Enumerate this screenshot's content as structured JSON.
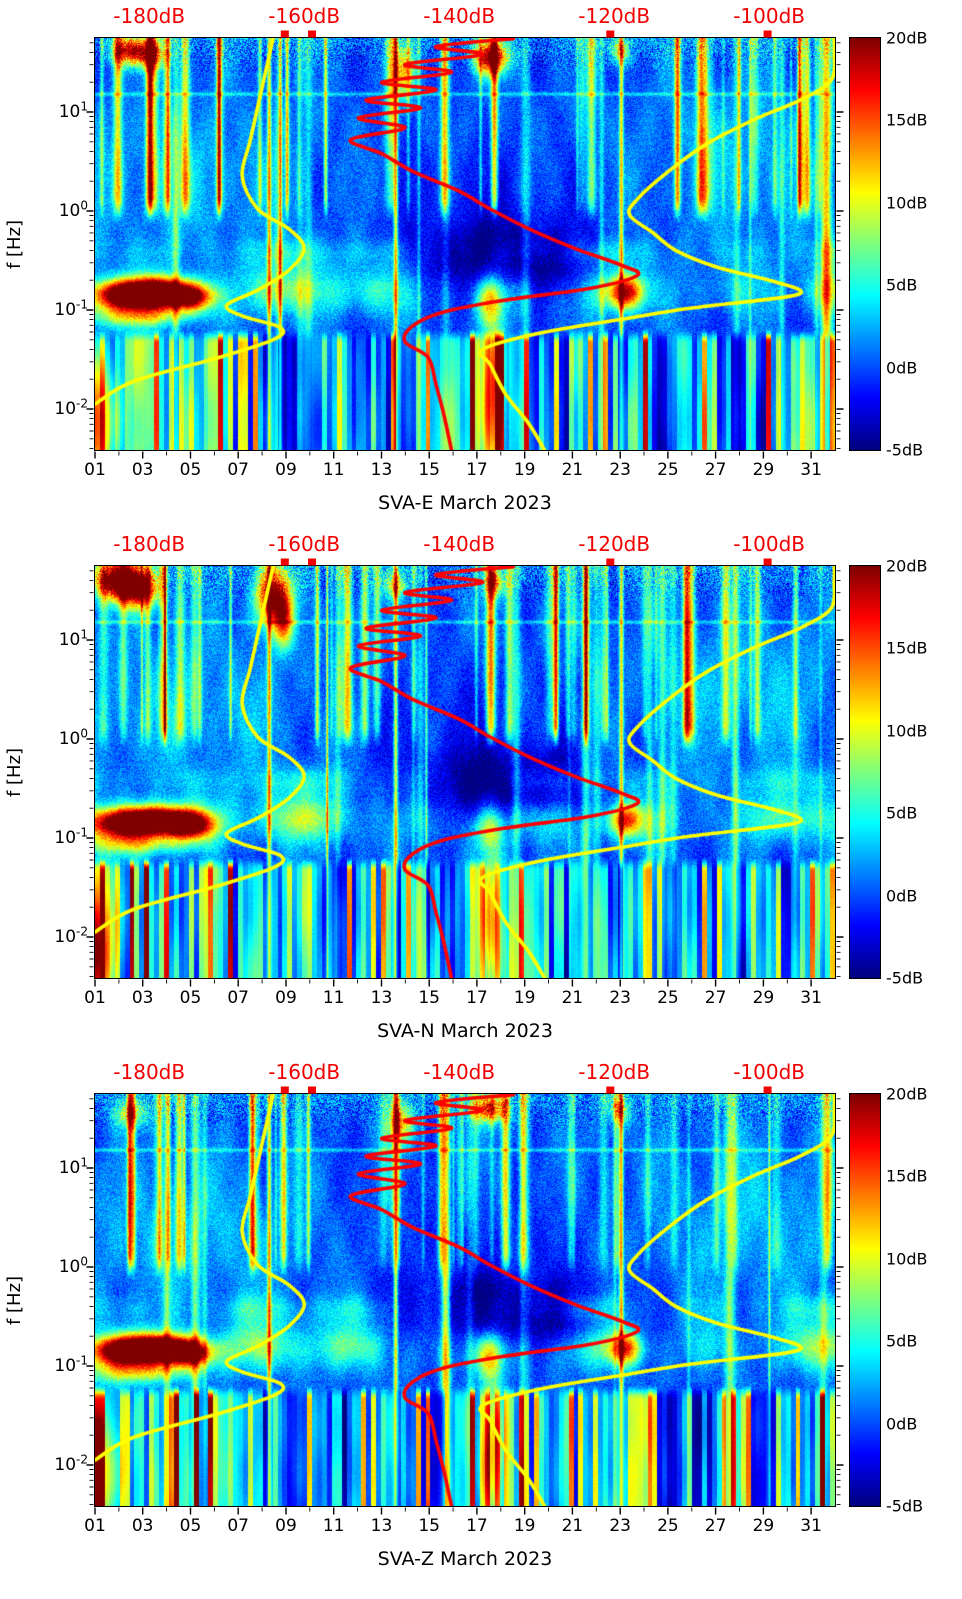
{
  "chart_data": {
    "type": "heatmap",
    "panels": [
      {
        "title": "SVA-E March 2023",
        "seed": 11,
        "features": [
          {
            "day": 2.4,
            "logf": 1.62,
            "amp": 15,
            "wd": 0.5,
            "hl": 0.1
          },
          {
            "day": 3.3,
            "logf": 1.58,
            "amp": 12,
            "wd": 0.5,
            "hl": 0.1
          },
          {
            "day": 13.9,
            "logf": 1.4,
            "amp": 11,
            "wd": 0.35,
            "hl": 0.18
          },
          {
            "day": 17.6,
            "logf": 1.55,
            "amp": 19,
            "wd": 0.5,
            "hl": 0.12
          },
          {
            "day": 23.0,
            "logf": 1.62,
            "amp": 10,
            "wd": 0.3,
            "hl": 0.1
          }
        ]
      },
      {
        "title": "SVA-N March 2023",
        "seed": 22,
        "features": [
          {
            "day": 1.9,
            "logf": 1.6,
            "amp": 21,
            "wd": 0.7,
            "hl": 0.13
          },
          {
            "day": 2.9,
            "logf": 1.52,
            "amp": 18,
            "wd": 0.6,
            "hl": 0.15
          },
          {
            "day": 8.4,
            "logf": 1.45,
            "amp": 20,
            "wd": 0.5,
            "hl": 0.22
          },
          {
            "day": 8.9,
            "logf": 1.2,
            "amp": 12,
            "wd": 0.3,
            "hl": 0.2
          },
          {
            "day": 13.6,
            "logf": 1.55,
            "amp": 10,
            "wd": 0.3,
            "hl": 0.1
          },
          {
            "day": 17.8,
            "logf": 1.58,
            "amp": 11,
            "wd": 0.3,
            "hl": 0.1
          }
        ]
      },
      {
        "title": "SVA-Z March 2023",
        "seed": 33,
        "features": [
          {
            "day": 2.5,
            "logf": 1.55,
            "amp": 9,
            "wd": 0.5,
            "hl": 0.1
          },
          {
            "day": 13.8,
            "logf": 1.45,
            "amp": 11,
            "wd": 0.4,
            "hl": 0.15
          },
          {
            "day": 17.5,
            "logf": 1.6,
            "amp": 16,
            "wd": 0.5,
            "hl": 0.1
          },
          {
            "day": 23.0,
            "logf": 1.58,
            "amp": 8,
            "wd": 0.3,
            "hl": 0.1
          }
        ]
      }
    ],
    "x_axis": {
      "major_tick_labels": [
        "01",
        "03",
        "05",
        "07",
        "09",
        "11",
        "13",
        "15",
        "17",
        "19",
        "21",
        "23",
        "25",
        "27",
        "29",
        "31"
      ],
      "major_days": [
        1,
        3,
        5,
        7,
        9,
        11,
        13,
        15,
        17,
        19,
        21,
        23,
        25,
        27,
        29,
        31
      ],
      "minor_days": [
        2,
        4,
        6,
        8,
        10,
        12,
        14,
        16,
        18,
        20,
        22,
        24,
        26,
        28,
        30
      ],
      "domain_days": [
        1,
        32
      ]
    },
    "y_axis": {
      "label": "f [Hz]",
      "scale": "log10",
      "major_tick_exponents": [
        1,
        0,
        -1,
        -2
      ],
      "domain_log10": [
        -2.414,
        1.747
      ]
    },
    "top_axis": {
      "color": "#f20000",
      "labels": [
        {
          "text": "-180dB",
          "value": -180
        },
        {
          "text": "-160dB",
          "value": -160
        },
        {
          "text": "-140dB",
          "value": -140
        },
        {
          "text": "-120dB",
          "value": -120
        },
        {
          "text": "-100dB",
          "value": -100
        }
      ],
      "domain_db": [
        -187,
        -91.5
      ],
      "marker_values_db": [
        -162.5,
        -159,
        -120.5,
        -100.2
      ]
    },
    "colorbar": {
      "colormap": "jet",
      "domain_db": [
        -5,
        20
      ],
      "tick_labels": [
        "20dB",
        "15dB",
        "10dB",
        "5dB",
        "0dB",
        "-5dB"
      ],
      "tick_values": [
        20,
        15,
        10,
        5,
        0,
        -5
      ]
    },
    "overlay_curves": {
      "yellow_lower_percentile": {
        "color": "#ffff00",
        "points_db_logf": [
          [
            -187,
            -1.95
          ],
          [
            -182,
            -1.72
          ],
          [
            -171,
            -1.48
          ],
          [
            -164,
            -1.3
          ],
          [
            -163,
            -1.18
          ],
          [
            -168,
            -1.06
          ],
          [
            -170,
            -0.95
          ],
          [
            -166,
            -0.8
          ],
          [
            -162,
            -0.6
          ],
          [
            -160,
            -0.38
          ],
          [
            -162,
            -0.18
          ],
          [
            -166,
            0.02
          ],
          [
            -168,
            0.35
          ],
          [
            -167,
            0.7
          ],
          [
            -166,
            1.05
          ],
          [
            -165,
            1.4
          ],
          [
            -164,
            1.75
          ]
        ]
      },
      "yellow_upper_percentile": {
        "color": "#ffff00",
        "points_db_logf": [
          [
            -129,
            -2.42
          ],
          [
            -131,
            -2.15
          ],
          [
            -134,
            -1.85
          ],
          [
            -136,
            -1.55
          ],
          [
            -137,
            -1.4
          ],
          [
            -130,
            -1.24
          ],
          [
            -118,
            -1.08
          ],
          [
            -110,
            -0.98
          ],
          [
            -98,
            -0.87
          ],
          [
            -96,
            -0.8
          ],
          [
            -100,
            -0.7
          ],
          [
            -107,
            -0.56
          ],
          [
            -112,
            -0.4
          ],
          [
            -115,
            -0.22
          ],
          [
            -118,
            -0.04
          ],
          [
            -117,
            0.12
          ],
          [
            -113,
            0.4
          ],
          [
            -108,
            0.68
          ],
          [
            -102,
            0.92
          ],
          [
            -96,
            1.12
          ],
          [
            -92,
            1.32
          ],
          [
            -91.6,
            1.6
          ],
          [
            -91.6,
            1.75
          ]
        ]
      },
      "red_median": {
        "color": "#ff0000",
        "points_db_logf": [
          [
            -133,
            1.74
          ],
          [
            -143,
            1.66
          ],
          [
            -137,
            1.58
          ],
          [
            -147,
            1.48
          ],
          [
            -141,
            1.4
          ],
          [
            -150,
            1.3
          ],
          [
            -143,
            1.22
          ],
          [
            -152,
            1.12
          ],
          [
            -145,
            1.04
          ],
          [
            -153,
            0.94
          ],
          [
            -147,
            0.84
          ],
          [
            -154,
            0.72
          ],
          [
            -150,
            0.58
          ],
          [
            -146,
            0.4
          ],
          [
            -140,
            0.2
          ],
          [
            -136,
            0.02
          ],
          [
            -131,
            -0.18
          ],
          [
            -125,
            -0.38
          ],
          [
            -119,
            -0.55
          ],
          [
            -117,
            -0.65
          ],
          [
            -123,
            -0.78
          ],
          [
            -134,
            -0.9
          ],
          [
            -142,
            -1.02
          ],
          [
            -146,
            -1.16
          ],
          [
            -147,
            -1.32
          ],
          [
            -144,
            -1.48
          ],
          [
            -143,
            -1.75
          ],
          [
            -142,
            -2.05
          ],
          [
            -141,
            -2.42
          ]
        ]
      }
    },
    "texture": {
      "stripe_boost_windows": [
        [
          1.0,
          6.2,
          3.5
        ],
        [
          16.3,
          18.6,
          4.0
        ],
        [
          22.6,
          23.6,
          5.0
        ],
        [
          29.0,
          31.5,
          1.5
        ]
      ],
      "strong_streaks": [
        8.3,
        13.6,
        23.05
      ],
      "features_common": [
        {
          "day": 2.2,
          "logf": -0.85,
          "amp": 20,
          "wd": 1.0,
          "hl": 0.1
        },
        {
          "day": 3.8,
          "logf": -0.82,
          "amp": 22,
          "wd": 1.1,
          "hl": 0.1
        },
        {
          "day": 5.0,
          "logf": -0.88,
          "amp": 15,
          "wd": 0.7,
          "hl": 0.09
        },
        {
          "day": 2.8,
          "logf": -1.06,
          "amp": 9,
          "wd": 1.6,
          "hl": 0.09
        },
        {
          "day": 23.2,
          "logf": -0.82,
          "amp": 14,
          "wd": 0.5,
          "hl": 0.12
        },
        {
          "day": 18.0,
          "logf": -0.45,
          "amp": -6,
          "wd": 2.5,
          "hl": 0.25
        },
        {
          "day": 20.5,
          "logf": -0.75,
          "amp": -4,
          "wd": 2.0,
          "hl": 0.2
        },
        {
          "day": 1.0,
          "logf": -2.1,
          "amp": 12,
          "wd": 0.6,
          "hl": 0.45
        },
        {
          "day": 17.7,
          "logf": -1.9,
          "amp": 11,
          "wd": 0.35,
          "hl": 0.6
        },
        {
          "day": 17.5,
          "logf": -0.9,
          "amp": 8,
          "wd": 0.4,
          "hl": 0.15
        },
        {
          "day": 5.0,
          "logf": 0.3,
          "amp": 2.5,
          "wd": 4.0,
          "hl": 0.5
        },
        {
          "day": 28.5,
          "logf": 0.5,
          "amp": 2.5,
          "wd": 3.0,
          "hl": 0.6
        },
        {
          "day": 16.5,
          "logf": 0.2,
          "amp": -1.5,
          "wd": 4.0,
          "hl": 0.4
        }
      ]
    }
  }
}
